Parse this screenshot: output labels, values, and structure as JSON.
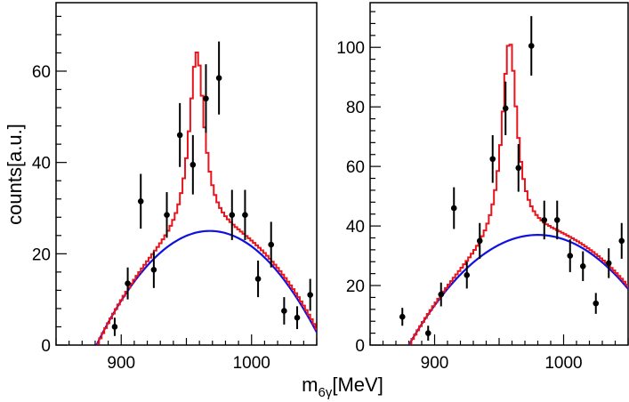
{
  "figure": {
    "ylabel": "counts[a.u.]",
    "xlabel_base": "m",
    "xlabel_sub": "6γ",
    "xlabel_unit": "[MeV]"
  },
  "colors": {
    "fit_total": "#e8141c",
    "background": "#1010e0",
    "points": "#000000"
  },
  "chart_data": [
    {
      "type": "scatter",
      "title": "",
      "xlim": [
        850,
        1050
      ],
      "ylim": [
        0,
        75
      ],
      "xticks": [
        900,
        1000
      ],
      "yticks": [
        0,
        20,
        40,
        60
      ],
      "points": [
        {
          "x": 895,
          "y": 4,
          "err": 2
        },
        {
          "x": 905,
          "y": 13.5,
          "err": 3.5
        },
        {
          "x": 915,
          "y": 31.5,
          "err": 6
        },
        {
          "x": 925,
          "y": 16.5,
          "err": 4
        },
        {
          "x": 935,
          "y": 28.5,
          "err": 5
        },
        {
          "x": 945,
          "y": 46,
          "err": 7
        },
        {
          "x": 955,
          "y": 39.5,
          "err": 6.5
        },
        {
          "x": 965,
          "y": 54,
          "err": 7.5
        },
        {
          "x": 975,
          "y": 58.5,
          "err": 8
        },
        {
          "x": 985,
          "y": 28.5,
          "err": 5.5
        },
        {
          "x": 995,
          "y": 28.5,
          "err": 5.5
        },
        {
          "x": 1005,
          "y": 14.5,
          "err": 4
        },
        {
          "x": 1015,
          "y": 22,
          "err": 5
        },
        {
          "x": 1025,
          "y": 7.5,
          "err": 3
        },
        {
          "x": 1035,
          "y": 6,
          "err": 2.5
        },
        {
          "x": 1045,
          "y": 11,
          "err": 3.5
        }
      ],
      "fit": {
        "bg_peak_x": 968,
        "bg_peak_y": 25,
        "bg_zero_x": 881,
        "peak_x": 957,
        "peak_amp": 39.5,
        "peak_width": 14
      }
    },
    {
      "type": "scatter",
      "title": "",
      "xlim": [
        850,
        1050
      ],
      "ylim": [
        0,
        115
      ],
      "xticks": [
        900,
        1000
      ],
      "yticks": [
        0,
        20,
        40,
        60,
        80,
        100
      ],
      "points": [
        {
          "x": 875,
          "y": 9.5,
          "err": 3
        },
        {
          "x": 895,
          "y": 4,
          "err": 2.5
        },
        {
          "x": 905,
          "y": 17,
          "err": 4
        },
        {
          "x": 915,
          "y": 46,
          "err": 7
        },
        {
          "x": 925,
          "y": 23.5,
          "err": 4.5
        },
        {
          "x": 935,
          "y": 35,
          "err": 6
        },
        {
          "x": 945,
          "y": 62.5,
          "err": 8
        },
        {
          "x": 955,
          "y": 79.5,
          "err": 9
        },
        {
          "x": 965,
          "y": 59.5,
          "err": 8
        },
        {
          "x": 975,
          "y": 100.5,
          "err": 10
        },
        {
          "x": 985,
          "y": 42,
          "err": 6.5
        },
        {
          "x": 995,
          "y": 42,
          "err": 6.5
        },
        {
          "x": 1005,
          "y": 30,
          "err": 5.5
        },
        {
          "x": 1015,
          "y": 26.5,
          "err": 5
        },
        {
          "x": 1025,
          "y": 14,
          "err": 3.5
        },
        {
          "x": 1035,
          "y": 27.5,
          "err": 5
        },
        {
          "x": 1045,
          "y": 35,
          "err": 6
        }
      ],
      "fit": {
        "bg_peak_x": 980,
        "bg_peak_y": 37,
        "bg_zero_x": 880,
        "peak_x": 957,
        "peak_amp": 67,
        "peak_width": 14
      }
    }
  ]
}
